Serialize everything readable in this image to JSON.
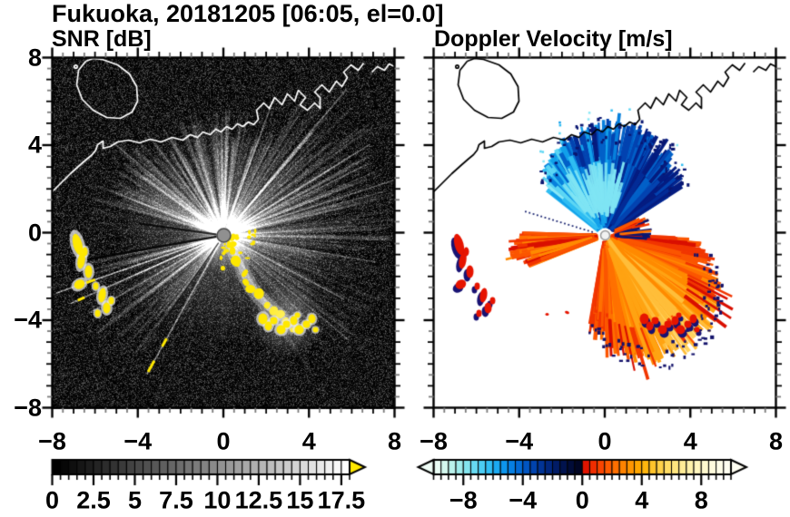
{
  "title": "Fukuoka, 20181205 [06:05, el=0.0]",
  "panels": [
    {
      "id": "snr",
      "subtitle": "SNR [dB]",
      "x_ticks": [
        "−8",
        "−4",
        "0",
        "4",
        "8"
      ],
      "y_ticks": [
        "8",
        "4",
        "0",
        "−4",
        "−8"
      ],
      "colorbar": {
        "labels": [
          "0",
          "2.5",
          "5",
          "7.5",
          "10",
          "12.5",
          "15",
          "17.5"
        ],
        "label_values": [
          0,
          2.5,
          5,
          7.5,
          10,
          12.5,
          15,
          17.5
        ],
        "range_min": 0,
        "range_max": 18,
        "segments": 36,
        "style": "grayscale",
        "over_arrow_color": "#ffe800"
      }
    },
    {
      "id": "doppler",
      "subtitle": "Doppler Velocity [m/s]",
      "x_ticks": [
        "−8",
        "−4",
        "0",
        "4",
        "8"
      ],
      "colorbar": {
        "labels": [
          "−8",
          "−4",
          "0",
          "4",
          "8"
        ],
        "label_values": [
          -8,
          -4,
          0,
          4,
          8
        ],
        "range_min": -10,
        "range_max": 10,
        "segments": 40,
        "under_arrow_color": "#effdf6",
        "over_arrow_color": "#fffef2",
        "colors": [
          "#e9fcf4",
          "#d4f7ee",
          "#baf2ec",
          "#9fecec",
          "#83e4ee",
          "#67d9f1",
          "#4bcdf4",
          "#30bef5",
          "#1baaf2",
          "#0d95ec",
          "#067fe2",
          "#0269d4",
          "#0155c2",
          "#0143ad",
          "#013496",
          "#01277e",
          "#011c66",
          "#01134e",
          "#010c38",
          "#010624",
          "#e11400",
          "#ef2d00",
          "#f94400",
          "#fe5a00",
          "#ff6f00",
          "#ff8300",
          "#ff9500",
          "#ffa600",
          "#ffb60e",
          "#ffc42b",
          "#ffd148",
          "#ffdc64",
          "#ffe57e",
          "#ffec96",
          "#fff2ab",
          "#fff6bf",
          "#fff9cf",
          "#fffbdd",
          "#fffde8",
          "#fffef1"
        ]
      }
    }
  ],
  "chart_data": [
    {
      "type": "heatmap",
      "panel_title": "SNR [dB]",
      "station": "Fukuoka",
      "date": "20181205",
      "time": "06:05",
      "elevation": 0.0,
      "x_range": [
        -8,
        8
      ],
      "y_range": [
        -8,
        8
      ],
      "x_tick_values": [
        -8,
        -4,
        0,
        4,
        8
      ],
      "y_tick_values": [
        8,
        4,
        0,
        -4,
        -8
      ],
      "colorbar": {
        "range": [
          0,
          18
        ],
        "tick_values": [
          0,
          2.5,
          5,
          7.5,
          10,
          12.5,
          15,
          17.5
        ],
        "colormap": "black-to-white grayscale, yellow over-range arrow",
        "segments": 36
      },
      "features": [
        "radar located at origin (0,0), shown as gray disk",
        "bright white SNR beam fan radiating from origin, strongest toward N, NE, E and SW",
        "thin bright rays toward SW and SSW crossing a dark wedge to the W",
        "yellow high-SNR clutter arc running from origin toward SE, ending near (3.5,-4)",
        "yellow clutter cluster near (-6.5,-1.5)",
        "white coastline with harbor jetties across the northern half, island near (-6.5,6)",
        "black background with speckle noise"
      ]
    },
    {
      "type": "heatmap",
      "panel_title": "Doppler Velocity [m/s]",
      "x_range": [
        -8,
        8
      ],
      "y_range": [
        -8,
        8
      ],
      "x_tick_values": [
        -8,
        -4,
        0,
        4,
        8
      ],
      "colorbar": {
        "range": [
          -10,
          10
        ],
        "tick_values": [
          -8,
          -4,
          0,
          4,
          8
        ],
        "colormap": "pale-cyan to navy for negative, red to pale-yellow for positive",
        "segments": 40
      },
      "features": [
        "blue fan of negative Doppler velocities north of radar (≈ -2 to -10 m/s)",
        "orange-red fan of positive velocities south and southeast of radar (≈ +2 to +8 m/s)",
        "orange wedge of positive velocities due west of radar",
        "red echoes with navy fringes near (-6.5,-1.5) matching SNR clutter",
        "dotted navy ray toward WNW",
        "black coastline across the northern half, white background"
      ]
    }
  ]
}
